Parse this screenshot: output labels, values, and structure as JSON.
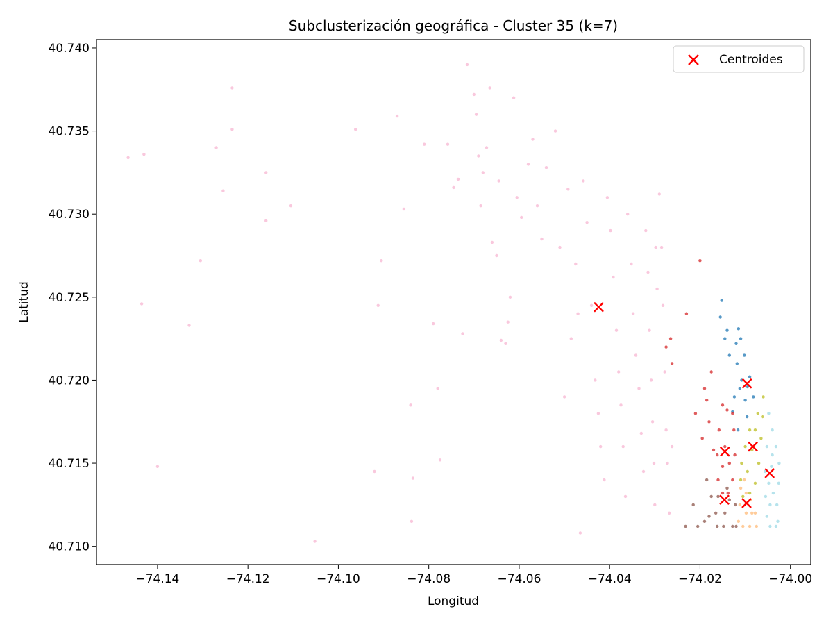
{
  "chart_data": {
    "type": "scatter",
    "title": "Subclusterización geográfica - Cluster 35 (k=7)",
    "xlabel": "Longitud",
    "ylabel": "Latitud",
    "xlim": [
      -74.1535,
      -73.9955
    ],
    "ylim": [
      40.7089,
      40.7405
    ],
    "x_ticks": [
      -74.14,
      -74.12,
      -74.1,
      -74.08,
      -74.06,
      -74.04,
      -74.02,
      -74.0
    ],
    "x_tick_labels": [
      "−74.14",
      "−74.12",
      "−74.10",
      "−74.08",
      "−74.06",
      "−74.04",
      "−74.02",
      "−74.00"
    ],
    "y_ticks": [
      40.71,
      40.715,
      40.72,
      40.725,
      40.73,
      40.735,
      40.74
    ],
    "y_tick_labels": [
      "40.710",
      "40.715",
      "40.720",
      "40.725",
      "40.730",
      "40.735",
      "40.740"
    ],
    "grid": false,
    "legend_position": "top-right",
    "legend": [
      {
        "label": "Centroides",
        "marker": "x",
        "color": "#ff0000"
      }
    ],
    "series": [
      {
        "color": "#1f77b4",
        "points": [
          [
            -74.0115,
            40.7231
          ],
          [
            -74.011,
            40.7225
          ],
          [
            -74.0102,
            40.7215
          ],
          [
            -74.009,
            40.7202
          ],
          [
            -74.0082,
            40.719
          ],
          [
            -74.0096,
            40.7178
          ],
          [
            -74.0116,
            40.717
          ],
          [
            -74.0124,
            40.719
          ],
          [
            -74.0118,
            40.721
          ],
          [
            -74.0108,
            40.72
          ],
          [
            -74.01,
            40.7188
          ],
          [
            -74.0112,
            40.7195
          ],
          [
            -74.0128,
            40.7181
          ],
          [
            -74.0155,
            40.7238
          ],
          [
            -74.0152,
            40.7248
          ],
          [
            -74.014,
            40.723
          ],
          [
            -74.0135,
            40.7215
          ],
          [
            -74.0145,
            40.7225
          ],
          [
            -74.012,
            40.7222
          ],
          [
            -74.0095,
            40.7196
          ]
        ]
      },
      {
        "color": "#bcbd22",
        "points": [
          [
            -74.006,
            40.719
          ],
          [
            -74.0072,
            40.718
          ],
          [
            -74.009,
            40.717
          ],
          [
            -74.01,
            40.716
          ],
          [
            -74.0108,
            40.715
          ],
          [
            -74.011,
            40.714
          ],
          [
            -74.0105,
            40.713
          ],
          [
            -74.009,
            40.7132
          ],
          [
            -74.0078,
            40.7138
          ],
          [
            -74.007,
            40.715
          ],
          [
            -74.0065,
            40.7165
          ],
          [
            -74.0062,
            40.7178
          ],
          [
            -74.0085,
            40.7158
          ],
          [
            -74.0078,
            40.717
          ],
          [
            -74.0095,
            40.7145
          ]
        ]
      },
      {
        "color": "#9edae5",
        "points": [
          [
            -74.0048,
            40.718
          ],
          [
            -74.004,
            40.717
          ],
          [
            -74.0032,
            40.716
          ],
          [
            -74.0025,
            40.715
          ],
          [
            -74.0026,
            40.7138
          ],
          [
            -74.003,
            40.7125
          ],
          [
            -74.0028,
            40.7115
          ],
          [
            -74.0032,
            40.7112
          ],
          [
            -74.0045,
            40.7112
          ],
          [
            -74.0052,
            40.7118
          ],
          [
            -74.0055,
            40.713
          ],
          [
            -74.0056,
            40.7145
          ],
          [
            -74.0052,
            40.716
          ],
          [
            -74.0042,
            40.7148
          ],
          [
            -74.0038,
            40.7132
          ],
          [
            -74.0045,
            40.7125
          ],
          [
            -74.004,
            40.7155
          ],
          [
            -74.0048,
            40.7138
          ]
        ]
      },
      {
        "color": "#d62728",
        "points": [
          [
            -74.015,
            40.7185
          ],
          [
            -74.014,
            40.7182
          ],
          [
            -74.0128,
            40.718
          ],
          [
            -74.0125,
            40.717
          ],
          [
            -74.0123,
            40.7155
          ],
          [
            -74.0128,
            40.714
          ],
          [
            -74.0138,
            40.7132
          ],
          [
            -74.015,
            40.7132
          ],
          [
            -74.016,
            40.714
          ],
          [
            -74.0162,
            40.7155
          ],
          [
            -74.0158,
            40.717
          ],
          [
            -74.0145,
            40.716
          ],
          [
            -74.0135,
            40.715
          ],
          [
            -74.015,
            40.7148
          ],
          [
            -74.018,
            40.7175
          ],
          [
            -74.0195,
            40.7165
          ],
          [
            -74.021,
            40.718
          ],
          [
            -74.019,
            40.7195
          ],
          [
            -74.0175,
            40.7205
          ],
          [
            -74.023,
            40.724
          ],
          [
            -74.0265,
            40.7225
          ],
          [
            -74.0262,
            40.721
          ],
          [
            -74.0275,
            40.722
          ],
          [
            -74.02,
            40.7272
          ],
          [
            -74.017,
            40.7158
          ],
          [
            -74.0185,
            40.7188
          ]
        ]
      },
      {
        "color": "#8c564b",
        "points": [
          [
            -74.016,
            40.713
          ],
          [
            -74.0135,
            40.7128
          ],
          [
            -74.0122,
            40.7125
          ],
          [
            -74.012,
            40.7112
          ],
          [
            -74.0128,
            40.7112
          ],
          [
            -74.0148,
            40.7112
          ],
          [
            -74.0162,
            40.7112
          ],
          [
            -74.0165,
            40.712
          ],
          [
            -74.0145,
            40.712
          ],
          [
            -74.0175,
            40.713
          ],
          [
            -74.018,
            40.7118
          ],
          [
            -74.019,
            40.7115
          ],
          [
            -74.0205,
            40.7112
          ],
          [
            -74.0232,
            40.7112
          ],
          [
            -74.0215,
            40.7125
          ],
          [
            -74.0185,
            40.714
          ],
          [
            -74.014,
            40.7135
          ]
        ]
      },
      {
        "color": "#ffbb78",
        "points": [
          [
            -74.011,
            40.7135
          ],
          [
            -74.0098,
            40.7132
          ],
          [
            -74.0088,
            40.7128
          ],
          [
            -74.0078,
            40.712
          ],
          [
            -74.0075,
            40.7112
          ],
          [
            -74.009,
            40.7112
          ],
          [
            -74.0105,
            40.7112
          ],
          [
            -74.0115,
            40.7115
          ],
          [
            -74.0112,
            40.7125
          ],
          [
            -74.0098,
            40.712
          ],
          [
            -74.0085,
            40.712
          ],
          [
            -74.0102,
            40.714
          ]
        ]
      },
      {
        "color": "#f7b6d2",
        "points": [
          [
            -74.1465,
            40.7334
          ],
          [
            -74.143,
            40.7336
          ],
          [
            -74.1435,
            40.7246
          ],
          [
            -74.14,
            40.7148
          ],
          [
            -74.133,
            40.7233
          ],
          [
            -74.1305,
            40.7272
          ],
          [
            -74.127,
            40.734
          ],
          [
            -74.1255,
            40.7314
          ],
          [
            -74.1235,
            40.7376
          ],
          [
            -74.1235,
            40.7351
          ],
          [
            -74.116,
            40.7325
          ],
          [
            -74.116,
            40.7296
          ],
          [
            -74.1105,
            40.7305
          ],
          [
            -74.1052,
            40.7103
          ],
          [
            -74.0962,
            40.7351
          ],
          [
            -74.092,
            40.7145
          ],
          [
            -74.0912,
            40.7245
          ],
          [
            -74.0905,
            40.7272
          ],
          [
            -74.087,
            40.7359
          ],
          [
            -74.0855,
            40.7303
          ],
          [
            -74.084,
            40.7185
          ],
          [
            -74.0838,
            40.7115
          ],
          [
            -74.0835,
            40.7141
          ],
          [
            -74.081,
            40.7342
          ],
          [
            -74.079,
            40.7234
          ],
          [
            -74.078,
            40.7195
          ],
          [
            -74.0775,
            40.7152
          ],
          [
            -74.0758,
            40.7342
          ],
          [
            -74.0745,
            40.7316
          ],
          [
            -74.0735,
            40.7321
          ],
          [
            -74.0725,
            40.7228
          ],
          [
            -74.0715,
            40.739
          ],
          [
            -74.07,
            40.7372
          ],
          [
            -74.0695,
            40.736
          ],
          [
            -74.069,
            40.7335
          ],
          [
            -74.0685,
            40.7305
          ],
          [
            -74.068,
            40.7325
          ],
          [
            -74.0672,
            40.734
          ],
          [
            -74.0665,
            40.7376
          ],
          [
            -74.066,
            40.7283
          ],
          [
            -74.065,
            40.7275
          ],
          [
            -74.0645,
            40.732
          ],
          [
            -74.064,
            40.7224
          ],
          [
            -74.063,
            40.7222
          ],
          [
            -74.0625,
            40.7235
          ],
          [
            -74.062,
            40.725
          ],
          [
            -74.0612,
            40.737
          ],
          [
            -74.0605,
            40.731
          ],
          [
            -74.0595,
            40.7298
          ],
          [
            -74.058,
            40.733
          ],
          [
            -74.057,
            40.7345
          ],
          [
            -74.056,
            40.7305
          ],
          [
            -74.055,
            40.7285
          ],
          [
            -74.054,
            40.7328
          ],
          [
            -74.052,
            40.735
          ],
          [
            -74.051,
            40.728
          ],
          [
            -74.05,
            40.719
          ],
          [
            -74.0492,
            40.7315
          ],
          [
            -74.0485,
            40.7225
          ],
          [
            -74.0475,
            40.727
          ],
          [
            -74.047,
            40.724
          ],
          [
            -74.0465,
            40.7108
          ],
          [
            -74.0458,
            40.732
          ],
          [
            -74.045,
            40.7295
          ],
          [
            -74.044,
            40.7245
          ],
          [
            -74.0432,
            40.72
          ],
          [
            -74.0425,
            40.718
          ],
          [
            -74.042,
            40.716
          ],
          [
            -74.0412,
            40.714
          ],
          [
            -74.0405,
            40.731
          ],
          [
            -74.0398,
            40.729
          ],
          [
            -74.0392,
            40.7262
          ],
          [
            -74.0385,
            40.723
          ],
          [
            -74.038,
            40.7205
          ],
          [
            -74.0375,
            40.7185
          ],
          [
            -74.037,
            40.716
          ],
          [
            -74.0365,
            40.713
          ],
          [
            -74.036,
            40.73
          ],
          [
            -74.0352,
            40.727
          ],
          [
            -74.0348,
            40.724
          ],
          [
            -74.0342,
            40.7215
          ],
          [
            -74.0335,
            40.7195
          ],
          [
            -74.033,
            40.7168
          ],
          [
            -74.0325,
            40.7145
          ],
          [
            -74.032,
            40.729
          ],
          [
            -74.0315,
            40.7265
          ],
          [
            -74.0312,
            40.723
          ],
          [
            -74.0308,
            40.72
          ],
          [
            -74.0305,
            40.7175
          ],
          [
            -74.0302,
            40.715
          ],
          [
            -74.03,
            40.7125
          ],
          [
            -74.0298,
            40.728
          ],
          [
            -74.0295,
            40.7255
          ],
          [
            -74.029,
            40.7312
          ],
          [
            -74.0285,
            40.728
          ],
          [
            -74.0282,
            40.7245
          ],
          [
            -74.0278,
            40.7205
          ],
          [
            -74.0275,
            40.717
          ],
          [
            -74.0272,
            40.715
          ],
          [
            -74.0268,
            40.712
          ],
          [
            -74.0262,
            40.716
          ]
        ]
      }
    ],
    "centroids": [
      [
        -74.0424,
        40.7244
      ],
      [
        -74.0096,
        40.7198
      ],
      [
        -74.0145,
        40.7157
      ],
      [
        -74.0083,
        40.716
      ],
      [
        -74.0046,
        40.7144
      ],
      [
        -74.0146,
        40.7128
      ],
      [
        -74.0097,
        40.7126
      ]
    ]
  }
}
